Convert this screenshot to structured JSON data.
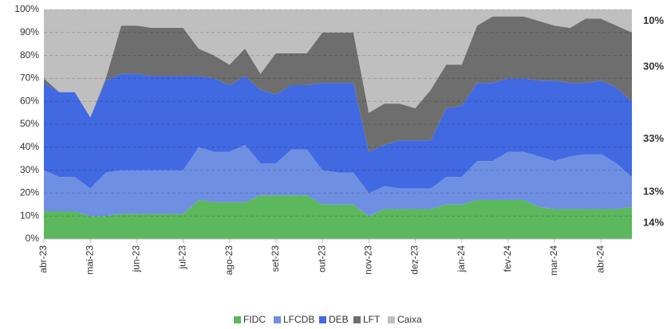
{
  "chart_data": {
    "type": "stacked_area",
    "categories": [
      "abr-23",
      null,
      null,
      "mai-23",
      null,
      null,
      "jun-23",
      null,
      null,
      "jul-23",
      null,
      null,
      "ago-23",
      null,
      null,
      "set-23",
      null,
      null,
      "out-23",
      null,
      null,
      "nov-23",
      null,
      null,
      "dez-23",
      null,
      null,
      "jan-24",
      null,
      null,
      "fev-24",
      null,
      null,
      "mar-24",
      null,
      null,
      "abr-24",
      null,
      null
    ],
    "series": [
      {
        "name": "FIDC",
        "color": "#5cb85c",
        "last_label": "14%",
        "label_color": "#5cb85c",
        "values": [
          12,
          12,
          12,
          10,
          10,
          11,
          11,
          11,
          11,
          11,
          17,
          16,
          16,
          16,
          19,
          19,
          19,
          19,
          15,
          15,
          15,
          10,
          13,
          13,
          13,
          13,
          15,
          15,
          17,
          17,
          17,
          17,
          14,
          13,
          13,
          13,
          13,
          13,
          14
        ]
      },
      {
        "name": "LFCDB",
        "color": "#6f8fe3",
        "last_label": "13%",
        "label_color": "#4472c4",
        "values": [
          18,
          15,
          15,
          12,
          19,
          19,
          19,
          19,
          19,
          19,
          23,
          22,
          22,
          25,
          14,
          14,
          20,
          20,
          15,
          14,
          14,
          10,
          10,
          9,
          9,
          9,
          12,
          12,
          17,
          17,
          21,
          21,
          22,
          21,
          23,
          24,
          24,
          20,
          13
        ]
      },
      {
        "name": "DEB",
        "color": "#4169e1",
        "last_label": "33%",
        "label_color": "#4472c4",
        "values": [
          38,
          37,
          37,
          31,
          40,
          42,
          42,
          41,
          41,
          41,
          31,
          32,
          29,
          30,
          32,
          30,
          28,
          28,
          38,
          39,
          39,
          18,
          18,
          21,
          21,
          21,
          30,
          31,
          34,
          34,
          32,
          32,
          33,
          35,
          32,
          31,
          32,
          33,
          33
        ]
      },
      {
        "name": "LFT",
        "color": "#6e6e6e",
        "last_label": "30%",
        "label_color": "#808080",
        "values": [
          2,
          0,
          0,
          0,
          1,
          21,
          21,
          21,
          21,
          21,
          12,
          10,
          9,
          12,
          7,
          18,
          14,
          14,
          22,
          22,
          22,
          17,
          18,
          16,
          14,
          22,
          19,
          18,
          25,
          29,
          27,
          27,
          26,
          24,
          24,
          28,
          27,
          27,
          30
        ]
      },
      {
        "name": "Caixa",
        "color": "#bfbfbf",
        "last_label": "10%",
        "label_color": "#808080",
        "values": [
          30,
          36,
          36,
          47,
          30,
          7,
          7,
          8,
          8,
          8,
          17,
          20,
          24,
          17,
          28,
          19,
          19,
          19,
          10,
          10,
          10,
          45,
          41,
          41,
          43,
          35,
          24,
          24,
          7,
          3,
          3,
          3,
          5,
          7,
          8,
          4,
          4,
          7,
          10
        ]
      }
    ],
    "ylim": [
      0,
      100
    ],
    "yticks": [
      {
        "value": 0,
        "label": "0%"
      },
      {
        "value": 10,
        "label": "10%"
      },
      {
        "value": 20,
        "label": "20%"
      },
      {
        "value": 30,
        "label": "30%"
      },
      {
        "value": 40,
        "label": "40%"
      },
      {
        "value": 50,
        "label": "50%"
      },
      {
        "value": 60,
        "label": "60%"
      },
      {
        "value": 70,
        "label": "70%"
      },
      {
        "value": 80,
        "label": "80%"
      },
      {
        "value": 90,
        "label": "90%"
      },
      {
        "value": 100,
        "label": "100%"
      }
    ],
    "grid": true,
    "legend": "bottom"
  }
}
